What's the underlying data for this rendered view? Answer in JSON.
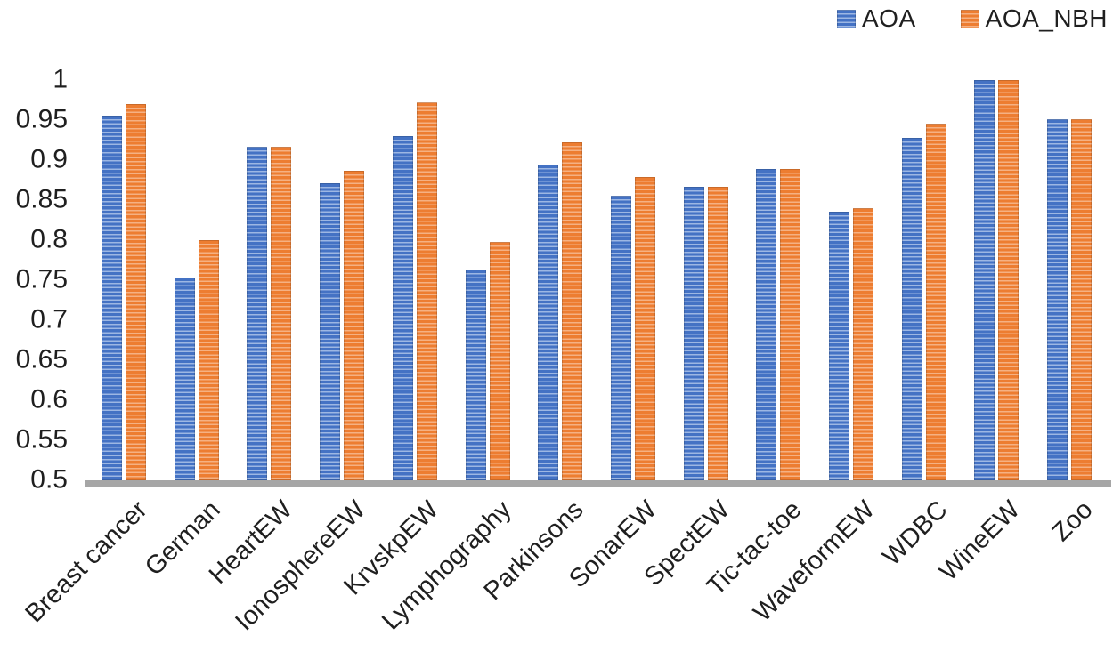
{
  "figure": {
    "background": "#ffffff",
    "text_color": "#1f1f1f",
    "axis_line_color": "#A6A6A6"
  },
  "legend": {
    "position": "top-right",
    "items": [
      {
        "label": "AOA",
        "color": "#4472C4",
        "stripe_color": "#9DB7E3"
      },
      {
        "label": "AOA_NBH",
        "color": "#ED7D31",
        "stripe_color": "#F5B183"
      }
    ]
  },
  "chart_data": {
    "type": "bar",
    "title": "",
    "xlabel": "",
    "ylabel": "",
    "categories": [
      "Breast cancer",
      "German",
      "HeartEW",
      "IonosphereEW",
      "KrvskpEW",
      "Lymphography",
      "Parkinsons",
      "SonarEW",
      "SpectEW",
      "Tic-tac-toe",
      "WaveformEW",
      "WDBC",
      "WineEW",
      "Zoo"
    ],
    "series": [
      {
        "name": "AOA",
        "color": "#4472C4",
        "stripe_color": "#9DB7E3",
        "values": [
          0.956,
          0.753,
          0.917,
          0.871,
          0.93,
          0.763,
          0.895,
          0.856,
          0.867,
          0.889,
          0.836,
          0.928,
          1.0,
          0.951
        ]
      },
      {
        "name": "AOA_NBH",
        "color": "#ED7D31",
        "stripe_color": "#F5B183",
        "values": [
          0.97,
          0.8,
          0.917,
          0.887,
          0.972,
          0.798,
          0.922,
          0.879,
          0.867,
          0.889,
          0.84,
          0.946,
          1.0,
          0.951
        ]
      }
    ],
    "ylim": [
      0.5,
      1.0
    ],
    "yticks": [
      "1",
      "0.95",
      "0.9",
      "0.85",
      "0.8",
      "0.75",
      "0.7",
      "0.65",
      "0.6",
      "0.55",
      "0.5"
    ],
    "grid": false,
    "legend_position": "top-right",
    "bar_pattern": "horizontal-stripes"
  }
}
